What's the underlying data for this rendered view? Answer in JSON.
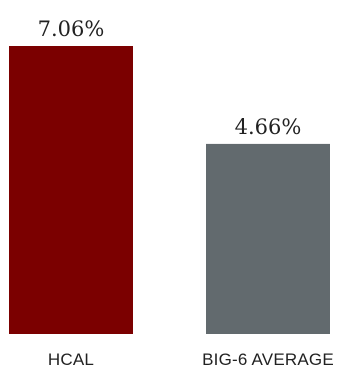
{
  "chart_data": {
    "type": "bar",
    "categories": [
      "HCAL",
      "BIG-6 AVERAGE"
    ],
    "values": [
      7.06,
      4.66
    ],
    "value_labels": [
      "7.06%",
      "4.66%"
    ],
    "colors": [
      "#7b0000",
      "#626a6e"
    ],
    "title": "",
    "xlabel": "",
    "ylabel": "",
    "ylim": [
      0,
      7.06
    ],
    "grid": false,
    "legend": "none"
  }
}
